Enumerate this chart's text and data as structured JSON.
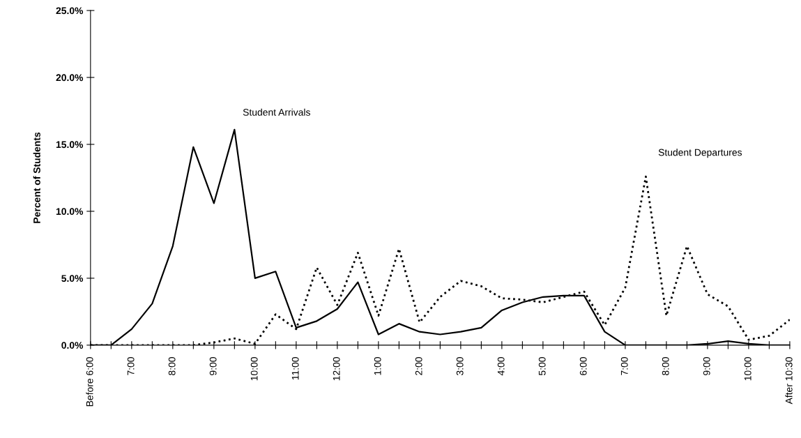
{
  "chart_data": {
    "type": "line",
    "ylabel": "Percent of Students",
    "categories": [
      "Before 6:00",
      null,
      "7:00",
      null,
      "8:00",
      null,
      "9:00",
      null,
      "10:00",
      null,
      "11:00",
      null,
      "12:00",
      null,
      "1:00",
      null,
      "2:00",
      null,
      "3:00",
      null,
      "4:00",
      null,
      "5:00",
      null,
      "6:00",
      null,
      "7:00",
      null,
      "8:00",
      null,
      "9:00",
      null,
      "10:00",
      null,
      "After 10:30"
    ],
    "series": [
      {
        "name": "Student Arrivals",
        "color": "#000000",
        "line_style": "solid",
        "values": [
          0,
          0,
          1.2,
          3.1,
          7.4,
          14.8,
          10.6,
          16.1,
          5.0,
          5.5,
          1.3,
          1.8,
          2.7,
          4.7,
          0.8,
          1.6,
          1.0,
          0.8,
          1.0,
          1.3,
          2.6,
          3.2,
          3.6,
          3.7,
          3.7,
          1.0,
          0,
          0,
          0,
          0,
          0.1,
          0.3,
          0.1,
          0,
          0
        ]
      },
      {
        "name": "Student Departures",
        "color": "#000000",
        "line_style": "dotted",
        "values": [
          0,
          0,
          0,
          0,
          0,
          0,
          0.2,
          0.5,
          0.1,
          2.3,
          1.2,
          5.8,
          3.0,
          6.9,
          2.2,
          7.2,
          1.7,
          3.6,
          4.8,
          4.4,
          3.5,
          3.4,
          3.2,
          3.6,
          4.0,
          1.5,
          4.3,
          12.6,
          2.2,
          7.4,
          3.8,
          2.9,
          0.4,
          0.7,
          1.9
        ]
      }
    ],
    "ylim": [
      0,
      25
    ],
    "yticks": [
      {
        "value": 0,
        "label": "0.0%"
      },
      {
        "value": 5,
        "label": "5.0%"
      },
      {
        "value": 10,
        "label": "10.0%"
      },
      {
        "value": 15,
        "label": "15.0%"
      },
      {
        "value": 20,
        "label": "20.0%"
      },
      {
        "value": 25,
        "label": "25.0%"
      }
    ],
    "grid": false,
    "legend": false,
    "marker": "none"
  }
}
